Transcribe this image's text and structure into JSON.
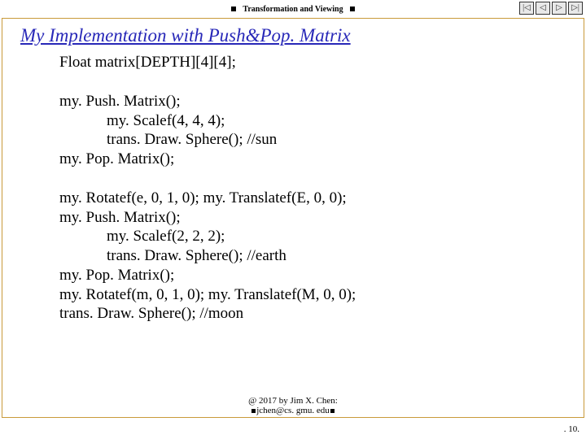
{
  "header": {
    "title": "Transformation and Viewing"
  },
  "nav": {
    "first": "|◁",
    "prev": "◁",
    "next": "▷",
    "last": "▷|"
  },
  "slide": {
    "title": "My Implementation with Push&Pop. Matrix"
  },
  "code": {
    "l1": "Float matrix[DEPTH][4][4];",
    "l2": "my. Push. Matrix();",
    "l3": "my. Scalef(4, 4, 4);",
    "l4": "trans. Draw. Sphere(); //sun",
    "l5": "my. Pop. Matrix();",
    "l6": "my. Rotatef(e, 0, 1, 0); my. Translatef(E, 0, 0);",
    "l7": "my. Push. Matrix();",
    "l8": "my. Scalef(2, 2, 2);",
    "l9": "trans. Draw. Sphere(); //earth",
    "l10": "my. Pop. Matrix();",
    "l11": "my. Rotatef(m, 0, 1, 0); my. Translatef(M, 0, 0);",
    "l12": "trans. Draw. Sphere(); //moon"
  },
  "footer": {
    "line1": "@ 2017 by Jim X. Chen:",
    "line2": "jchen@cs. gmu. edu"
  },
  "page": ". 10."
}
